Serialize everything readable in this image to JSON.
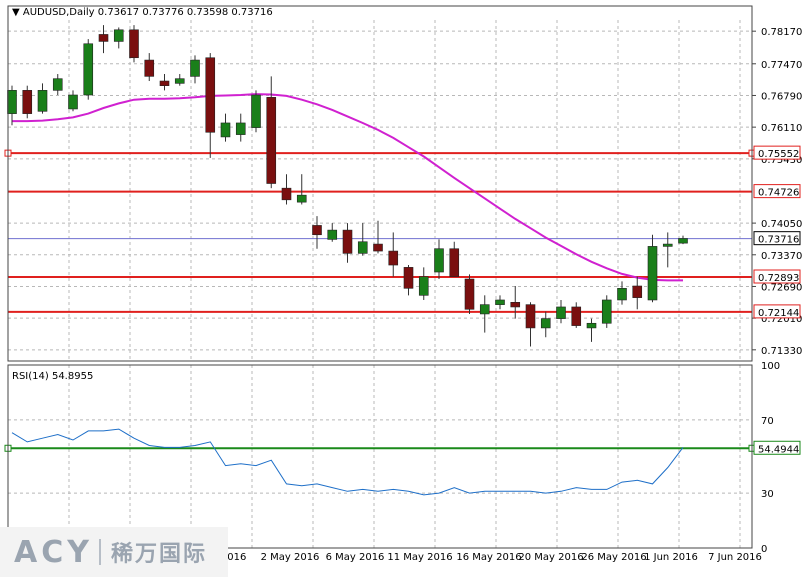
{
  "header": {
    "symbol": "AUDUSD,Daily",
    "ohlc": "0.73617 0.73776 0.73598 0.73716"
  },
  "rsi_label": "RSI(14) 54.8955",
  "logo": {
    "brand": "ACY",
    "cn": "稀万国际"
  },
  "colors": {
    "bull": "#1a7f1a",
    "bear": "#7a0f0f",
    "ma": "#d021d0",
    "hline": "#e0201e",
    "rsi": "#1e6fc8",
    "rsi_level": "#1a8a1a",
    "price_marker": "#7070d0"
  },
  "chart_data": [
    {
      "type": "candlestick",
      "title": "AUDUSD,Daily",
      "x_tick_labels": [
        "r 2016",
        "2 May 2016",
        "6 May 2016",
        "11 May 2016",
        "16 May 2016",
        "20 May 2016",
        "26 May 2016",
        "1 Jun 2016",
        "7 Jun 2016"
      ],
      "y_tick_labels": [
        "0.78170",
        "0.77470",
        "0.76790",
        "0.76110",
        "0.75430",
        "0.74050",
        "0.73370",
        "0.72690",
        "0.72010",
        "0.71330"
      ],
      "ylim": [
        0.7109,
        0.7841
      ],
      "grid": true,
      "candles": [
        {
          "o": 0.764,
          "h": 0.77,
          "l": 0.7615,
          "c": 0.769
        },
        {
          "o": 0.769,
          "h": 0.77,
          "l": 0.763,
          "c": 0.764
        },
        {
          "o": 0.7645,
          "h": 0.7705,
          "l": 0.764,
          "c": 0.769
        },
        {
          "o": 0.769,
          "h": 0.7725,
          "l": 0.768,
          "c": 0.7715
        },
        {
          "o": 0.765,
          "h": 0.769,
          "l": 0.7645,
          "c": 0.768
        },
        {
          "o": 0.768,
          "h": 0.78,
          "l": 0.767,
          "c": 0.779
        },
        {
          "o": 0.781,
          "h": 0.783,
          "l": 0.777,
          "c": 0.7795
        },
        {
          "o": 0.7795,
          "h": 0.7825,
          "l": 0.778,
          "c": 0.782
        },
        {
          "o": 0.782,
          "h": 0.783,
          "l": 0.775,
          "c": 0.776
        },
        {
          "o": 0.7755,
          "h": 0.777,
          "l": 0.771,
          "c": 0.772
        },
        {
          "o": 0.771,
          "h": 0.7725,
          "l": 0.769,
          "c": 0.77
        },
        {
          "o": 0.7705,
          "h": 0.7725,
          "l": 0.77,
          "c": 0.7715
        },
        {
          "o": 0.772,
          "h": 0.7765,
          "l": 0.7705,
          "c": 0.7755
        },
        {
          "o": 0.776,
          "h": 0.777,
          "l": 0.7545,
          "c": 0.76
        },
        {
          "o": 0.759,
          "h": 0.764,
          "l": 0.758,
          "c": 0.762
        },
        {
          "o": 0.7595,
          "h": 0.764,
          "l": 0.758,
          "c": 0.762
        },
        {
          "o": 0.761,
          "h": 0.769,
          "l": 0.76,
          "c": 0.768
        },
        {
          "o": 0.7675,
          "h": 0.772,
          "l": 0.748,
          "c": 0.749
        },
        {
          "o": 0.748,
          "h": 0.751,
          "l": 0.7445,
          "c": 0.7455
        },
        {
          "o": 0.745,
          "h": 0.751,
          "l": 0.7445,
          "c": 0.7465
        },
        {
          "o": 0.74,
          "h": 0.742,
          "l": 0.735,
          "c": 0.738
        },
        {
          "o": 0.737,
          "h": 0.7405,
          "l": 0.7365,
          "c": 0.739
        },
        {
          "o": 0.739,
          "h": 0.7405,
          "l": 0.732,
          "c": 0.734
        },
        {
          "o": 0.734,
          "h": 0.7405,
          "l": 0.7335,
          "c": 0.7365
        },
        {
          "o": 0.736,
          "h": 0.741,
          "l": 0.734,
          "c": 0.7345
        },
        {
          "o": 0.7345,
          "h": 0.7385,
          "l": 0.729,
          "c": 0.7315
        },
        {
          "o": 0.731,
          "h": 0.7315,
          "l": 0.725,
          "c": 0.7265
        },
        {
          "o": 0.725,
          "h": 0.731,
          "l": 0.724,
          "c": 0.729
        },
        {
          "o": 0.73,
          "h": 0.737,
          "l": 0.7285,
          "c": 0.735
        },
        {
          "o": 0.735,
          "h": 0.7365,
          "l": 0.729,
          "c": 0.729
        },
        {
          "o": 0.7285,
          "h": 0.7295,
          "l": 0.721,
          "c": 0.722
        },
        {
          "o": 0.721,
          "h": 0.725,
          "l": 0.717,
          "c": 0.723
        },
        {
          "o": 0.723,
          "h": 0.725,
          "l": 0.722,
          "c": 0.724
        },
        {
          "o": 0.7235,
          "h": 0.727,
          "l": 0.72,
          "c": 0.7225
        },
        {
          "o": 0.723,
          "h": 0.7235,
          "l": 0.714,
          "c": 0.718
        },
        {
          "o": 0.718,
          "h": 0.7215,
          "l": 0.716,
          "c": 0.72
        },
        {
          "o": 0.72,
          "h": 0.724,
          "l": 0.719,
          "c": 0.7225
        },
        {
          "o": 0.7225,
          "h": 0.7235,
          "l": 0.718,
          "c": 0.7185
        },
        {
          "o": 0.718,
          "h": 0.72,
          "l": 0.715,
          "c": 0.719
        },
        {
          "o": 0.719,
          "h": 0.725,
          "l": 0.718,
          "c": 0.724
        },
        {
          "o": 0.724,
          "h": 0.728,
          "l": 0.723,
          "c": 0.7265
        },
        {
          "o": 0.727,
          "h": 0.729,
          "l": 0.722,
          "c": 0.7245
        },
        {
          "o": 0.724,
          "h": 0.738,
          "l": 0.7235,
          "c": 0.7355
        },
        {
          "o": 0.7355,
          "h": 0.7385,
          "l": 0.731,
          "c": 0.736
        },
        {
          "o": 0.7362,
          "h": 0.7378,
          "l": 0.736,
          "c": 0.7372
        }
      ],
      "ma_series": [
        0.7624,
        0.7624,
        0.7625,
        0.7628,
        0.7632,
        0.764,
        0.7652,
        0.7662,
        0.767,
        0.7672,
        0.7672,
        0.7673,
        0.7675,
        0.7678,
        0.7679,
        0.768,
        0.7682,
        0.7681,
        0.7678,
        0.767,
        0.766,
        0.7648,
        0.7634,
        0.762,
        0.7605,
        0.7588,
        0.7568,
        0.7548,
        0.7525,
        0.7502,
        0.748,
        0.7458,
        0.7436,
        0.7414,
        0.7394,
        0.7374,
        0.7356,
        0.7338,
        0.7322,
        0.7308,
        0.7296,
        0.7288,
        0.7283,
        0.7282,
        0.7282
      ],
      "horizontal_levels": [
        "0.75552",
        "0.74726",
        "0.72893",
        "0.72144"
      ],
      "current_price": "0.73716"
    },
    {
      "type": "line",
      "title": "RSI(14) 54.8955",
      "y_tick_labels": [
        "100",
        "70",
        "30",
        "0"
      ],
      "ylim": [
        0,
        100
      ],
      "level": "54.4944",
      "values": [
        63,
        58,
        60,
        62,
        59,
        64,
        64,
        65,
        60,
        56,
        55,
        55,
        56,
        58,
        45,
        46,
        45,
        48,
        35,
        34,
        35,
        33,
        31,
        32,
        31,
        32,
        31,
        29,
        30,
        33,
        30,
        31,
        31,
        31,
        31,
        30,
        31,
        33,
        32,
        32,
        36,
        37,
        35,
        44,
        55
      ]
    }
  ]
}
